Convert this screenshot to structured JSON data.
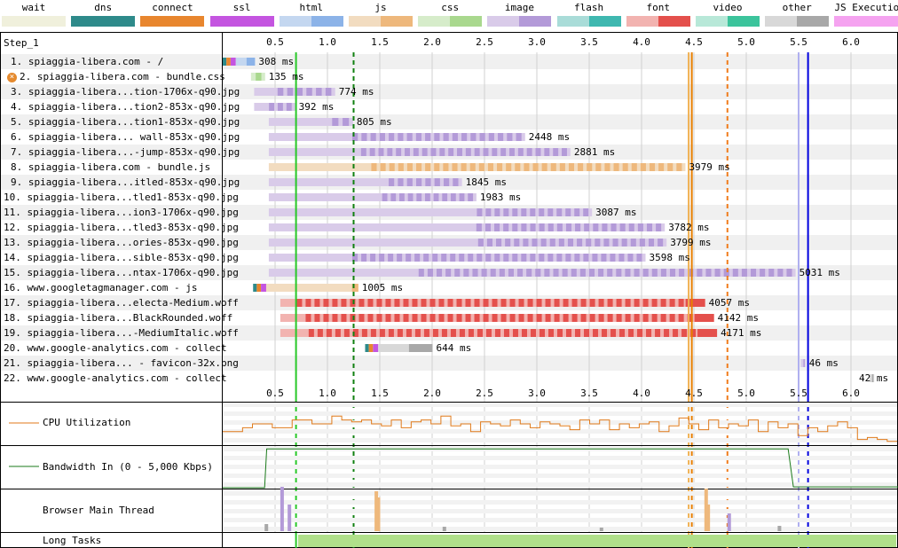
{
  "legend": [
    {
      "label": "wait",
      "c1": "#f0f0dc",
      "c2": "#f0f0dc"
    },
    {
      "label": "dns",
      "c1": "#2e8a8a",
      "c2": "#2e8a8a"
    },
    {
      "label": "connect",
      "c1": "#e8862e",
      "c2": "#e8862e"
    },
    {
      "label": "ssl",
      "c1": "#c455e0",
      "c2": "#c455e0"
    },
    {
      "label": "html",
      "c1": "#c4d7f0",
      "c2": "#8cb3e8"
    },
    {
      "label": "js",
      "c1": "#f2dcc0",
      "c2": "#eeb87c"
    },
    {
      "label": "css",
      "c1": "#d6ecca",
      "c2": "#a9d88e"
    },
    {
      "label": "image",
      "c1": "#d9cbe9",
      "c2": "#b39ad8"
    },
    {
      "label": "flash",
      "c1": "#a9dcd8",
      "c2": "#3fb8b0"
    },
    {
      "label": "font",
      "c1": "#f2b3b0",
      "c2": "#e4504c"
    },
    {
      "label": "video",
      "c1": "#b8e8d8",
      "c2": "#3cc49c"
    },
    {
      "label": "other",
      "c1": "#d8d8d8",
      "c2": "#a8a8a8"
    },
    {
      "label": "JS Execution",
      "c1": "#f5a3f0",
      "c2": "#f5a3f0"
    }
  ],
  "step_label": "Step_1",
  "axis_ticks": [
    "0.5",
    "1.0",
    "1.5",
    "2.0",
    "2.5",
    "3.0",
    "3.5",
    "4.0",
    "4.5",
    "5.0",
    "5.5",
    "6.0"
  ],
  "requests": [
    {
      "label": "1. spiaggia-libera.com - /",
      "start": 0.0,
      "end": 0.308,
      "dur": "308 ms",
      "type": "html",
      "dl": 0.16
    },
    {
      "label": "2. spiaggia-libera.com - bundle.css",
      "start": 0.27,
      "end": 0.405,
      "dur": "135 ms",
      "type": "css",
      "dl": 0.09,
      "error": true
    },
    {
      "label": "3. spiaggia-libera...tion-1706x-q90.jpg",
      "start": 0.3,
      "end": 1.074,
      "dur": "774 ms",
      "type": "image",
      "dl": 0.55
    },
    {
      "label": "4. spiaggia-libera...tion2-853x-q90.jpg",
      "start": 0.3,
      "end": 0.692,
      "dur": "392 ms",
      "type": "image",
      "dl": 0.25
    },
    {
      "label": "5. spiaggia-libera...tion1-853x-q90.jpg",
      "start": 0.44,
      "end": 1.245,
      "dur": "805 ms",
      "type": "image",
      "dl": 0.2
    },
    {
      "label": "6. spiaggia-libera... wall-853x-q90.jpg",
      "start": 0.44,
      "end": 2.888,
      "dur": "2448 ms",
      "type": "image",
      "dl": 1.65
    },
    {
      "label": "7. spiaggia-libera...-jump-853x-q90.jpg",
      "start": 0.44,
      "end": 3.321,
      "dur": "2881 ms",
      "type": "image",
      "dl": 2.0
    },
    {
      "label": "8. spiaggia-libera.com - bundle.js",
      "start": 0.44,
      "end": 4.419,
      "dur": "3979 ms",
      "type": "js",
      "dl": 3.0
    },
    {
      "label": "9. spiaggia-libera...itled-853x-q90.jpg",
      "start": 0.44,
      "end": 2.285,
      "dur": "1845 ms",
      "type": "image",
      "dl": 0.7
    },
    {
      "label": "10. spiaggia-libera...tled1-853x-q90.jpg",
      "start": 0.44,
      "end": 2.423,
      "dur": "1983 ms",
      "type": "image",
      "dl": 0.9
    },
    {
      "label": "11. spiaggia-libera...ion3-1706x-q90.jpg",
      "start": 0.44,
      "end": 3.527,
      "dur": "3087 ms",
      "type": "image",
      "dl": 1.1
    },
    {
      "label": "12. spiaggia-libera...tled3-853x-q90.jpg",
      "start": 0.44,
      "end": 4.222,
      "dur": "3782 ms",
      "type": "image",
      "dl": 1.8
    },
    {
      "label": "13. spiaggia-libera...ories-853x-q90.jpg",
      "start": 0.44,
      "end": 4.239,
      "dur": "3799 ms",
      "type": "image",
      "dl": 1.8
    },
    {
      "label": "14. spiaggia-libera...sible-853x-q90.jpg",
      "start": 0.44,
      "end": 4.038,
      "dur": "3598 ms",
      "type": "image",
      "dl": 2.8
    },
    {
      "label": "15. spiaggia-libera...ntax-1706x-q90.jpg",
      "start": 0.44,
      "end": 5.471,
      "dur": "5031 ms",
      "type": "image",
      "dl": 3.6
    },
    {
      "label": "16. www.googletagmanager.com - js",
      "start": 0.29,
      "end": 1.295,
      "dur": "1005 ms",
      "type": "js",
      "dl": 0.12
    },
    {
      "label": "17. spiaggia-libera...electa-Medium.woff",
      "start": 0.55,
      "end": 4.607,
      "dur": "4057 ms",
      "type": "font",
      "dl": 3.9
    },
    {
      "label": "18. spiaggia-libera...BlackRounded.woff",
      "start": 0.55,
      "end": 4.692,
      "dur": "4142 ms",
      "type": "font",
      "dl": 3.9
    },
    {
      "label": "19. spiaggia-libera...-MediumItalic.woff",
      "start": 0.55,
      "end": 4.721,
      "dur": "4171 ms",
      "type": "font",
      "dl": 3.9
    },
    {
      "label": "20. www.google-analytics.com - collect",
      "start": 1.36,
      "end": 2.004,
      "dur": "644 ms",
      "type": "other",
      "dl": 0.45
    },
    {
      "label": "21. spiaggia-libera... - favicon-32x.png",
      "start": 5.52,
      "end": 5.566,
      "dur": "46 ms",
      "type": "image",
      "dl": 0.02
    },
    {
      "label": "22. www.google-analytics.com - collect",
      "start": 6.18,
      "end": 6.222,
      "dur": "42 ms",
      "type": "other",
      "dl": 0.02
    }
  ],
  "markers": [
    {
      "at": 0.7,
      "color": "#28c828",
      "style": "solid"
    },
    {
      "at": 1.25,
      "color": "#108010",
      "style": "dashed"
    },
    {
      "at": 4.45,
      "color": "#f0b050",
      "style": "solid"
    },
    {
      "at": 4.48,
      "color": "#e87f00",
      "style": "solid"
    },
    {
      "at": 4.82,
      "color": "#f07c1c",
      "style": "dashed"
    },
    {
      "at": 5.5,
      "color": "#b0b0f0",
      "style": "solid"
    },
    {
      "at": 5.59,
      "color": "#0000dd",
      "style": "solid"
    }
  ],
  "graphs": {
    "cpu_label": "CPU Utilization",
    "bandwidth_label": "Bandwidth In (0 - 5,000 Kbps)",
    "main_thread_label": "Browser Main Thread",
    "long_tasks_label": "Long Tasks"
  },
  "long_tasks": {
    "start": 0.72,
    "end": 6.45,
    "color": "#b0e08a"
  },
  "cpu_series": [
    0.3,
    0.3,
    0.4,
    0.5,
    0.5,
    0.4,
    0.4,
    0.6,
    0.6,
    0.5,
    0.5,
    0.7,
    0.6,
    0.55,
    0.6,
    0.5,
    0.45,
    0.6,
    0.4,
    0.55,
    0.6,
    0.5,
    0.7,
    0.45,
    0.5,
    0.3,
    0.55,
    0.5,
    0.45,
    0.6,
    0.5,
    0.4,
    0.55,
    0.5,
    0.45,
    0.35,
    0.6,
    0.5,
    0.6,
    0.35,
    0.5,
    0.4,
    0.5,
    0.55,
    0.3,
    0.45,
    0.65,
    0.5,
    0.35,
    0.6,
    0.4,
    0.5,
    0.45,
    0.6,
    0.3,
    0.55,
    0.4,
    0.5,
    0.2,
    0.4,
    0.3,
    0.45,
    0.55,
    0.4,
    0.1,
    0.15,
    0.1,
    0.05
  ],
  "bandwidth_points": [
    [
      0,
      0
    ],
    [
      0.4,
      0
    ],
    [
      0.42,
      0.95
    ],
    [
      5.4,
      0.95
    ],
    [
      5.45,
      0.02
    ],
    [
      6.5,
      0.02
    ]
  ]
}
